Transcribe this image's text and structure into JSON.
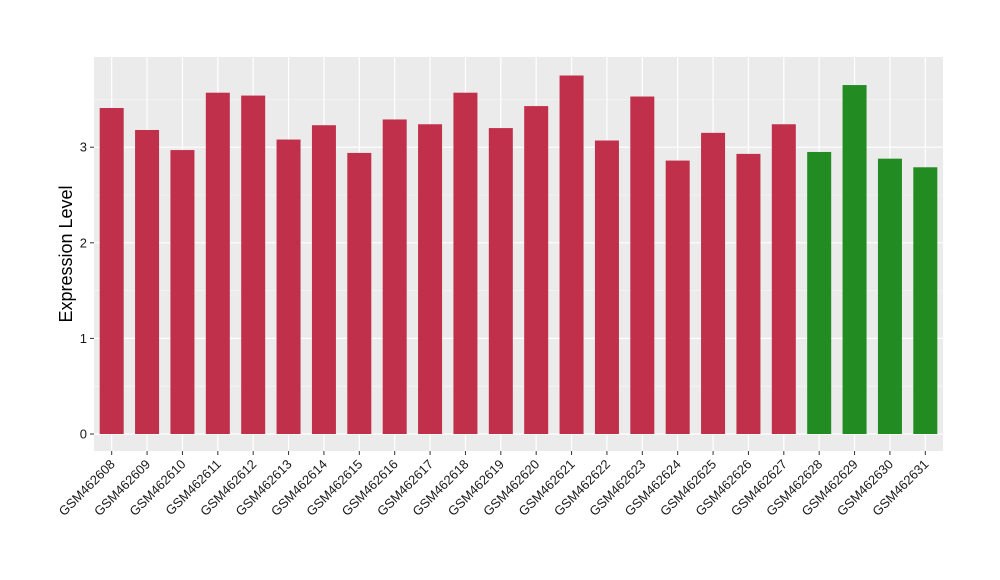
{
  "chart_data": {
    "type": "bar",
    "title": "",
    "xlabel": "",
    "ylabel": "Expression Level",
    "ylim": [
      0,
      3.9
    ],
    "yticks": [
      0,
      1,
      2,
      3
    ],
    "grid": true,
    "legend": "none",
    "categories": [
      "GSM462608",
      "GSM462609",
      "GSM462610",
      "GSM462611",
      "GSM462612",
      "GSM462613",
      "GSM462614",
      "GSM462615",
      "GSM462616",
      "GSM462617",
      "GSM462618",
      "GSM462619",
      "GSM462620",
      "GSM462621",
      "GSM462622",
      "GSM462623",
      "GSM462624",
      "GSM462625",
      "GSM462626",
      "GSM462627",
      "GSM462628",
      "GSM462629",
      "GSM462630",
      "GSM462631"
    ],
    "values": [
      3.41,
      3.18,
      2.97,
      3.57,
      3.54,
      3.08,
      3.23,
      2.94,
      3.29,
      3.24,
      3.57,
      3.2,
      3.43,
      3.75,
      3.07,
      3.53,
      2.86,
      3.15,
      2.93,
      3.24,
      2.95,
      3.65,
      2.88,
      2.79
    ],
    "groups": [
      "red",
      "red",
      "red",
      "red",
      "red",
      "red",
      "red",
      "red",
      "red",
      "red",
      "red",
      "red",
      "red",
      "red",
      "red",
      "red",
      "red",
      "red",
      "red",
      "red",
      "green",
      "green",
      "green",
      "green"
    ],
    "colors": {
      "red": "#c0304a",
      "green": "#228b22",
      "panel": "#ebebeb",
      "grid_major": "#ffffff",
      "grid_minor": "#f5f5f5"
    }
  }
}
